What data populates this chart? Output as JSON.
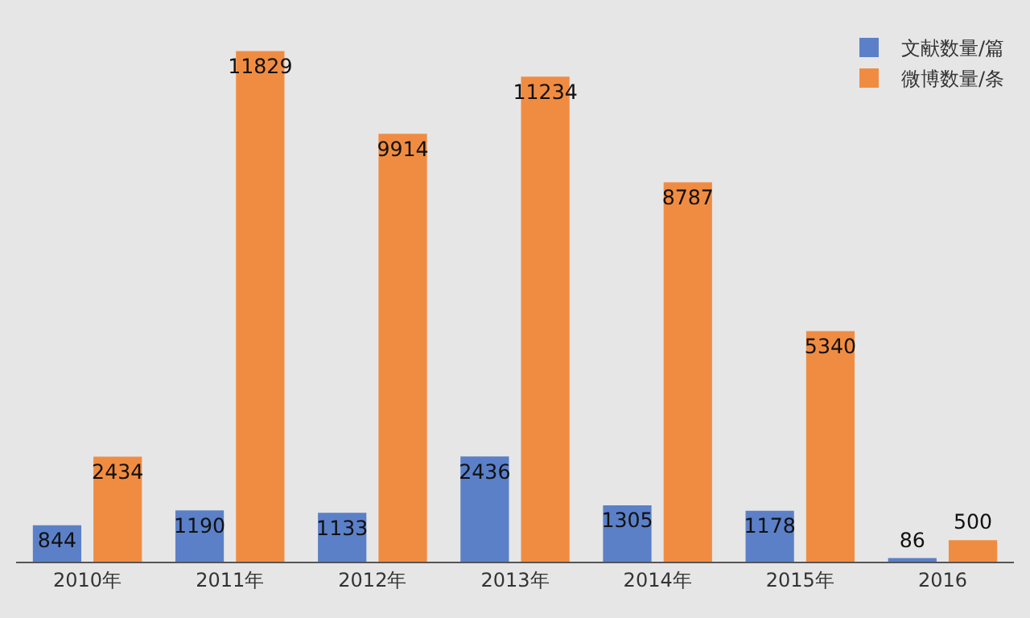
{
  "chart_data": {
    "type": "bar",
    "categories": [
      "2010年",
      "2011年",
      "2012年",
      "2013年",
      "2014年",
      "2015年",
      "2016"
    ],
    "series": [
      {
        "name": "文献数量/篇",
        "color": "#5b80c8",
        "values": [
          844,
          1190,
          1133,
          2436,
          1305,
          1178,
          86
        ]
      },
      {
        "name": "微博数量/条",
        "color": "#f08c42",
        "values": [
          2434,
          11829,
          9914,
          11234,
          8787,
          5340,
          500
        ]
      }
    ],
    "data_labels": true,
    "legend": "top right"
  }
}
